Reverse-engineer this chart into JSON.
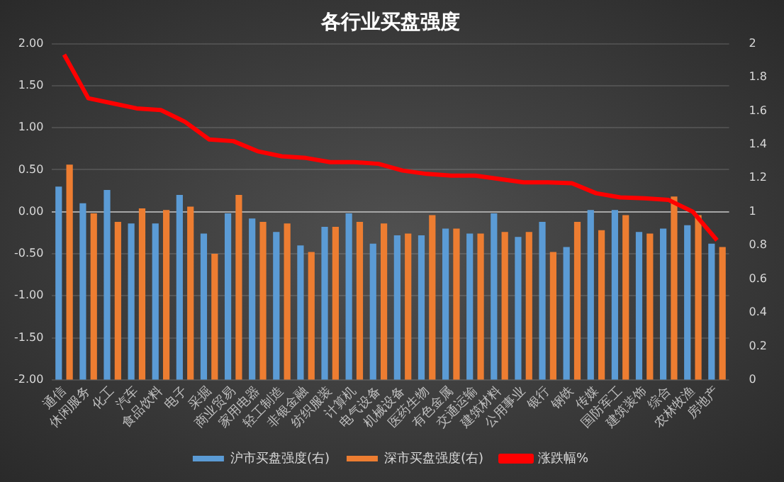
{
  "chart_data": {
    "type": "bar",
    "title": "各行业买盘强度",
    "categories": [
      "通信",
      "休闲服务",
      "化工",
      "汽车",
      "食品饮料",
      "电子",
      "采掘",
      "商业贸易",
      "家用电器",
      "轻工制造",
      "非银金融",
      "纺织服装",
      "计算机",
      "电气设备",
      "机械设备",
      "医药生物",
      "有色金属",
      "交通运输",
      "建筑材料",
      "公用事业",
      "银行",
      "钢铁",
      "传媒",
      "国防军工",
      "建筑装饰",
      "综合",
      "农林牧渔",
      "房地产"
    ],
    "series": [
      {
        "name": "沪市买盘强度(右)",
        "axis": "y2",
        "color": "#5b9bd5",
        "values": [
          1.15,
          1.05,
          1.13,
          0.93,
          0.93,
          1.1,
          0.87,
          0.99,
          0.96,
          0.88,
          0.8,
          0.91,
          0.99,
          0.81,
          0.86,
          0.86,
          0.9,
          0.87,
          0.99,
          0.85,
          0.94,
          0.79,
          1.01,
          1.01,
          0.88,
          0.9,
          0.92,
          0.81
        ]
      },
      {
        "name": "深市买盘强度(右)",
        "axis": "y2",
        "color": "#ed7d31",
        "values": [
          1.28,
          0.99,
          0.94,
          1.02,
          1.01,
          1.03,
          0.75,
          1.1,
          0.94,
          0.93,
          0.76,
          0.91,
          0.94,
          0.93,
          0.87,
          0.98,
          0.9,
          0.87,
          0.88,
          0.88,
          0.76,
          0.94,
          0.89,
          0.98,
          0.87,
          1.09,
          0.98,
          0.79
        ]
      },
      {
        "name": "涨跌幅%",
        "type": "line",
        "axis": "y",
        "color": "#ff0000",
        "values": [
          1.87,
          1.35,
          1.29,
          1.23,
          1.21,
          1.07,
          0.86,
          0.84,
          0.72,
          0.66,
          0.64,
          0.59,
          0.59,
          0.57,
          0.49,
          0.45,
          0.43,
          0.43,
          0.39,
          0.35,
          0.35,
          0.34,
          0.22,
          0.17,
          0.16,
          0.14,
          0.0,
          -0.34
        ]
      }
    ],
    "ylim": [
      -2,
      2
    ],
    "yticks": [
      {
        "value": -2,
        "label": "-2.00"
      },
      {
        "value": -1.5,
        "label": "-1.50"
      },
      {
        "value": -1,
        "label": "-1.00"
      },
      {
        "value": -0.5,
        "label": "-0.50"
      },
      {
        "value": 0,
        "label": "0.00"
      },
      {
        "value": 0.5,
        "label": "0.50"
      },
      {
        "value": 1,
        "label": "1.00"
      },
      {
        "value": 1.5,
        "label": "1.50"
      },
      {
        "value": 2,
        "label": "2.00"
      }
    ],
    "y2lim": [
      0,
      2
    ],
    "y2ticks": [
      0,
      0.2,
      0.4,
      0.6,
      0.8,
      1,
      1.2,
      1.4,
      1.6,
      1.8,
      2
    ],
    "grid": "y",
    "legend": "bottom",
    "marker": "none",
    "line_style": "solid"
  }
}
